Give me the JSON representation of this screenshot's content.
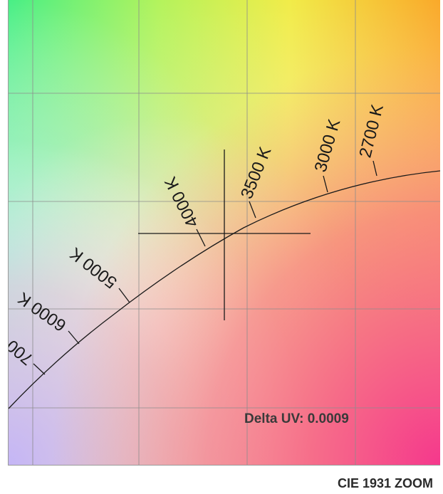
{
  "diagram": {
    "delta_uv": "Delta UV: 0.0009",
    "caption": "CIE 1931 ZOOM",
    "cct_labels": [
      "2700 K",
      "3000 K",
      "3500 K",
      "4000 K",
      "5000 K",
      "6000 K",
      "700"
    ],
    "colors": {
      "top_left": "#49f08a",
      "top_center": "#f4f44c",
      "top_right": "#f9b326",
      "bottom_left": "#c8b8f4",
      "bottom_right": "#f43e8f",
      "line": "#1a1a1a",
      "grid": "#8c8c8c"
    }
  }
}
